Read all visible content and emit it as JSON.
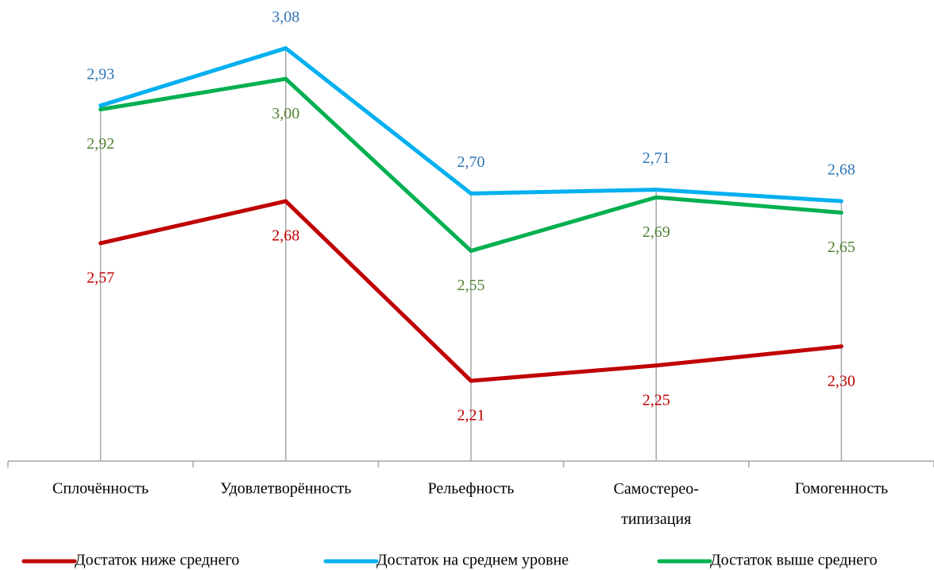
{
  "chart_data": {
    "type": "line",
    "categories": [
      "Сплочённость",
      "Удовлетворённость",
      "Рельефность",
      "Самостерео-типизация",
      "Гомогенность"
    ],
    "series": [
      {
        "name": "Достаток ниже среднего",
        "color": "#c00000",
        "label_color": "#c00000",
        "label_position": "below",
        "values": [
          2.57,
          2.68,
          2.21,
          2.25,
          2.3
        ],
        "value_labels": [
          "2,57",
          "2,68",
          "2,21",
          "2,25",
          "2,30"
        ]
      },
      {
        "name": "Достаток на среднем уровне",
        "color": "#00b0f0",
        "label_color": "#2e75b6",
        "label_position": "above",
        "values": [
          2.93,
          3.08,
          2.7,
          2.71,
          2.68
        ],
        "value_labels": [
          "2,93",
          "3,08",
          "2,70",
          "2,71",
          "2,68"
        ]
      },
      {
        "name": "Достаток выше среднего",
        "color": "#00b050",
        "label_color": "#548235",
        "label_position": "below",
        "values": [
          2.92,
          3.0,
          2.55,
          2.69,
          2.65
        ],
        "value_labels": [
          "2,92",
          "3,00",
          "2,55",
          "2,69",
          "2,65"
        ]
      }
    ],
    "ylim": [
      2.0,
      3.2
    ],
    "legend": "bottom"
  }
}
